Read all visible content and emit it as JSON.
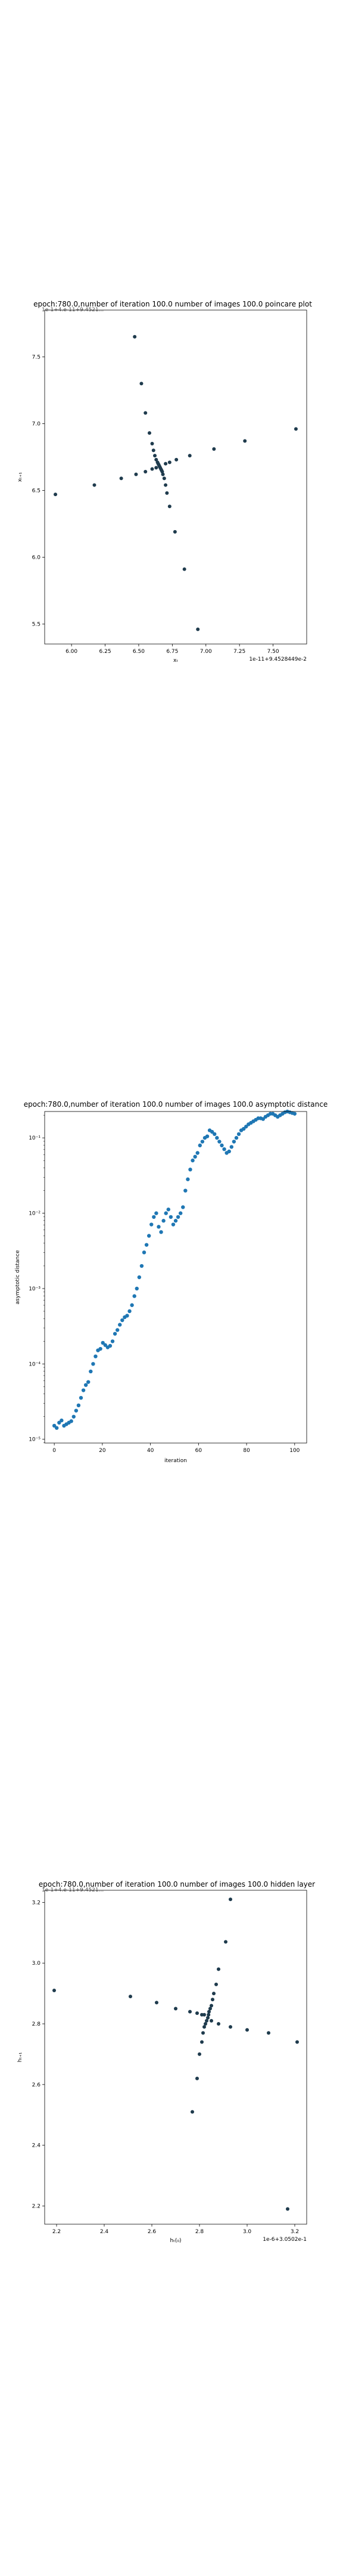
{
  "charts": [
    {
      "type": "scatter",
      "title": "epoch:780.0,number of iteration 100.0 number of images 100.0 poincare plot",
      "overlay_text": "1e-1+4.e-11+9.4521...",
      "xlabel": "xₜ",
      "ylabel": "xₜ₊₁",
      "x_tick_labels": [
        "6.00",
        "6.25",
        "6.50",
        "6.75",
        "7.00",
        "7.25",
        "7.50"
      ],
      "y_tick_labels": [
        "5.5",
        "6.0",
        "6.5",
        "7.0",
        "7.5"
      ],
      "x_offset_text": "1e-11+9.4528449e-2",
      "xlim": [
        5.8,
        7.75
      ],
      "ylim": [
        5.35,
        7.85
      ],
      "color": "#1f3b4d",
      "points": [
        [
          6.47,
          7.65
        ],
        [
          6.52,
          7.3
        ],
        [
          6.55,
          7.08
        ],
        [
          6.58,
          6.93
        ],
        [
          6.6,
          6.85
        ],
        [
          6.61,
          6.8
        ],
        [
          6.62,
          6.76
        ],
        [
          6.63,
          6.73
        ],
        [
          6.64,
          6.71
        ],
        [
          6.645,
          6.7
        ],
        [
          6.65,
          6.69
        ],
        [
          6.655,
          6.68
        ],
        [
          6.66,
          6.67
        ],
        [
          6.665,
          6.66
        ],
        [
          6.67,
          6.65
        ],
        [
          6.675,
          6.64
        ],
        [
          6.68,
          6.62
        ],
        [
          6.69,
          6.59
        ],
        [
          6.7,
          6.54
        ],
        [
          6.71,
          6.48
        ],
        [
          6.73,
          6.38
        ],
        [
          6.77,
          6.19
        ],
        [
          6.84,
          5.91
        ],
        [
          6.94,
          5.46
        ],
        [
          5.88,
          6.47
        ],
        [
          6.17,
          6.54
        ],
        [
          6.37,
          6.59
        ],
        [
          6.48,
          6.62
        ],
        [
          6.55,
          6.64
        ],
        [
          6.6,
          6.66
        ],
        [
          6.63,
          6.67
        ],
        [
          6.7,
          6.7
        ],
        [
          6.73,
          6.71
        ],
        [
          6.78,
          6.73
        ],
        [
          6.88,
          6.76
        ],
        [
          7.06,
          6.81
        ],
        [
          7.29,
          6.87
        ],
        [
          7.67,
          6.96
        ]
      ]
    },
    {
      "type": "scatter",
      "title": "epoch:780.0,number of iteration 100.0  number of images 100.0 asymptotic distance",
      "xlabel": "iteration",
      "ylabel": "asymptotic distance",
      "x_tick_labels": [
        "0",
        "20",
        "40",
        "60",
        "80",
        "100"
      ],
      "y_tick_labels": [
        "10⁻⁵",
        "10⁻⁴",
        "10⁻³",
        "10⁻²",
        "10⁻¹"
      ],
      "xlim": [
        -4,
        105
      ],
      "ylim_log10": [
        -5.05,
        -0.65
      ],
      "log_scale_y": true,
      "color": "#1f77b4",
      "log10_y_values": [
        -4.82,
        -4.85,
        -4.78,
        -4.75,
        -4.82,
        -4.8,
        -4.78,
        -4.76,
        -4.7,
        -4.62,
        -4.55,
        -4.45,
        -4.35,
        -4.28,
        -4.24,
        -4.1,
        -4.0,
        -3.9,
        -3.82,
        -3.8,
        -3.72,
        -3.75,
        -3.78,
        -3.76,
        -3.7,
        -3.6,
        -3.55,
        -3.48,
        -3.42,
        -3.38,
        -3.36,
        -3.3,
        -3.22,
        -3.1,
        -3.0,
        -2.85,
        -2.7,
        -2.52,
        -2.42,
        -2.3,
        -2.15,
        -2.05,
        -2.0,
        -2.18,
        -2.25,
        -2.1,
        -2.0,
        -1.95,
        -2.05,
        -2.15,
        -2.1,
        -2.05,
        -2.0,
        -1.92,
        -1.7,
        -1.55,
        -1.42,
        -1.3,
        -1.25,
        -1.2,
        -1.1,
        -1.05,
        -1.0,
        -0.98,
        -0.9,
        -0.92,
        -0.95,
        -1.0,
        -1.05,
        -1.1,
        -1.15,
        -1.2,
        -1.18,
        -1.12,
        -1.05,
        -1.0,
        -0.95,
        -0.9,
        -0.88,
        -0.85,
        -0.82,
        -0.8,
        -0.78,
        -0.76,
        -0.74,
        -0.74,
        -0.75,
        -0.72,
        -0.7,
        -0.68,
        -0.68,
        -0.7,
        -0.72,
        -0.7,
        -0.68,
        -0.66,
        -0.65,
        -0.66,
        -0.67,
        -0.68
      ]
    },
    {
      "type": "scatter",
      "title": "epoch:780.0,number of iteration 100.0  number of images 100.0 hidden layer",
      "overlay_text": "1e-1+4.e-11+9.4521...",
      "xlabel": "hₜ(₀)",
      "ylabel": "hₜ₊₁",
      "x_tick_labels": [
        "2.2",
        "2.4",
        "2.6",
        "2.8",
        "3.0",
        "3.2"
      ],
      "y_tick_labels": [
        "2.2",
        "2.4",
        "2.6",
        "2.8",
        "3.0",
        "3.2"
      ],
      "x_offset_text": "1e-6+3.0502e-1",
      "xlim": [
        2.15,
        3.25
      ],
      "ylim": [
        2.14,
        3.24
      ],
      "color": "#1f3b4d",
      "points": [
        [
          2.93,
          3.21
        ],
        [
          2.91,
          3.07
        ],
        [
          2.88,
          2.98
        ],
        [
          2.87,
          2.93
        ],
        [
          2.86,
          2.9
        ],
        [
          2.855,
          2.88
        ],
        [
          2.85,
          2.86
        ],
        [
          2.845,
          2.85
        ],
        [
          2.84,
          2.84
        ],
        [
          2.838,
          2.83
        ],
        [
          2.835,
          2.82
        ],
        [
          2.83,
          2.81
        ],
        [
          2.825,
          2.8
        ],
        [
          2.82,
          2.79
        ],
        [
          2.815,
          2.77
        ],
        [
          2.81,
          2.74
        ],
        [
          2.8,
          2.7
        ],
        [
          2.79,
          2.62
        ],
        [
          2.77,
          2.51
        ],
        [
          2.19,
          2.91
        ],
        [
          2.51,
          2.89
        ],
        [
          2.62,
          2.87
        ],
        [
          2.7,
          2.85
        ],
        [
          2.76,
          2.84
        ],
        [
          2.79,
          2.835
        ],
        [
          2.81,
          2.83
        ],
        [
          2.82,
          2.83
        ],
        [
          2.85,
          2.81
        ],
        [
          2.88,
          2.8
        ],
        [
          2.93,
          2.79
        ],
        [
          3.0,
          2.78
        ],
        [
          3.09,
          2.77
        ],
        [
          3.21,
          2.74
        ],
        [
          3.17,
          2.19
        ]
      ]
    }
  ]
}
